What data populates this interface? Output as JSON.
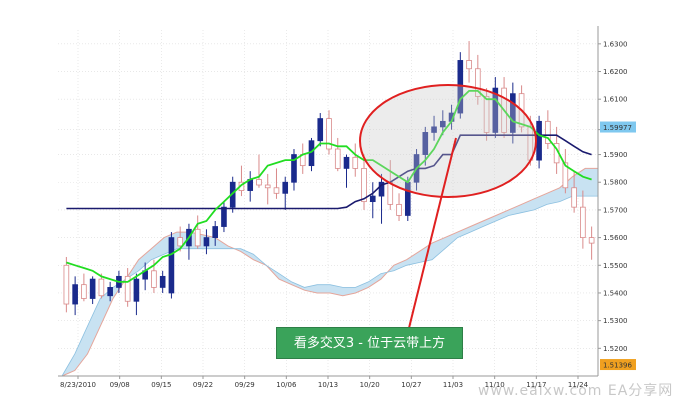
{
  "chart_data": {
    "type": "candlestick",
    "y_ticks": [
      "1.6300",
      "1.6200",
      "1.6100",
      "1.5990",
      "1.5900",
      "1.5800",
      "1.5700",
      "1.5600",
      "1.5500",
      "1.5400",
      "1.5300",
      "1.5200"
    ],
    "x_ticks": [
      "8/23/2010",
      "09/08",
      "09/15",
      "09/22",
      "09/29",
      "10/06",
      "10/13",
      "10/20",
      "10/27",
      "11/03",
      "11/10",
      "11/17",
      "11/24"
    ],
    "price_badges": [
      {
        "label": "1.59977",
        "value": 1.59977,
        "color": "#7fc8ef"
      },
      {
        "label": "1.51396",
        "value": 1.51396,
        "color": "#f0a020"
      }
    ],
    "ylim": [
      1.51,
      1.635
    ],
    "candles": [
      [
        1.55,
        1.553,
        1.533,
        1.536
      ],
      [
        1.536,
        1.546,
        1.532,
        1.543
      ],
      [
        1.543,
        1.547,
        1.537,
        1.538
      ],
      [
        1.538,
        1.546,
        1.536,
        1.545
      ],
      [
        1.545,
        1.547,
        1.538,
        1.539
      ],
      [
        1.539,
        1.544,
        1.537,
        1.542
      ],
      [
        1.542,
        1.548,
        1.54,
        1.546
      ],
      [
        1.546,
        1.549,
        1.535,
        1.537
      ],
      [
        1.537,
        1.547,
        1.532,
        1.545
      ],
      [
        1.545,
        1.551,
        1.541,
        1.548
      ],
      [
        1.548,
        1.552,
        1.54,
        1.542
      ],
      [
        1.542,
        1.548,
        1.54,
        1.546
      ],
      [
        1.54,
        1.562,
        1.538,
        1.56
      ],
      [
        1.56,
        1.564,
        1.555,
        1.557
      ],
      [
        1.557,
        1.565,
        1.552,
        1.563
      ],
      [
        1.563,
        1.568,
        1.556,
        1.557
      ],
      [
        1.557,
        1.563,
        1.554,
        1.56
      ],
      [
        1.56,
        1.566,
        1.557,
        1.564
      ],
      [
        1.564,
        1.573,
        1.562,
        1.571
      ],
      [
        1.571,
        1.582,
        1.569,
        1.58
      ],
      [
        1.58,
        1.586,
        1.575,
        1.577
      ],
      [
        1.577,
        1.584,
        1.573,
        1.581
      ],
      [
        1.581,
        1.59,
        1.578,
        1.579
      ],
      [
        1.579,
        1.583,
        1.572,
        1.578
      ],
      [
        1.578,
        1.585,
        1.574,
        1.576
      ],
      [
        1.576,
        1.582,
        1.57,
        1.58
      ],
      [
        1.58,
        1.592,
        1.577,
        1.59
      ],
      [
        1.59,
        1.594,
        1.583,
        1.586
      ],
      [
        1.586,
        1.596,
        1.584,
        1.595
      ],
      [
        1.595,
        1.605,
        1.593,
        1.603
      ],
      [
        1.603,
        1.606,
        1.59,
        1.592
      ],
      [
        1.592,
        1.596,
        1.584,
        1.585
      ],
      [
        1.585,
        1.59,
        1.578,
        1.589
      ],
      [
        1.589,
        1.594,
        1.582,
        1.585
      ],
      [
        1.585,
        1.59,
        1.57,
        1.573
      ],
      [
        1.573,
        1.58,
        1.567,
        1.575
      ],
      [
        1.575,
        1.583,
        1.565,
        1.58
      ],
      [
        1.58,
        1.588,
        1.57,
        1.572
      ],
      [
        1.572,
        1.576,
        1.566,
        1.568
      ],
      [
        1.568,
        1.582,
        1.566,
        1.58
      ],
      [
        1.58,
        1.592,
        1.577,
        1.59
      ],
      [
        1.59,
        1.6,
        1.586,
        1.598
      ],
      [
        1.598,
        1.604,
        1.595,
        1.6
      ],
      [
        1.6,
        1.606,
        1.597,
        1.602
      ],
      [
        1.602,
        1.608,
        1.599,
        1.605
      ],
      [
        1.605,
        1.627,
        1.603,
        1.624
      ],
      [
        1.624,
        1.631,
        1.616,
        1.621
      ],
      [
        1.621,
        1.626,
        1.608,
        1.611
      ],
      [
        1.611,
        1.614,
        1.595,
        1.598
      ],
      [
        1.598,
        1.618,
        1.596,
        1.614
      ],
      [
        1.614,
        1.618,
        1.596,
        1.598
      ],
      [
        1.598,
        1.616,
        1.594,
        1.612
      ],
      [
        1.612,
        1.615,
        1.598,
        1.6
      ],
      [
        1.6,
        1.604,
        1.586,
        1.588
      ],
      [
        1.588,
        1.604,
        1.585,
        1.602
      ],
      [
        1.602,
        1.606,
        1.592,
        1.594
      ],
      [
        1.594,
        1.6,
        1.583,
        1.587
      ],
      [
        1.587,
        1.592,
        1.576,
        1.578
      ],
      [
        1.578,
        1.584,
        1.569,
        1.571
      ],
      [
        1.571,
        1.577,
        1.556,
        1.56
      ],
      [
        1.56,
        1.564,
        1.552,
        1.558
      ]
    ],
    "kijun": [
      1.5705,
      1.5705,
      1.5705,
      1.5705,
      1.5705,
      1.5705,
      1.5705,
      1.5705,
      1.5705,
      1.5705,
      1.5705,
      1.5705,
      1.5705,
      1.5705,
      1.5705,
      1.5705,
      1.5705,
      1.5705,
      1.5705,
      1.5705,
      1.5705,
      1.5705,
      1.5705,
      1.5705,
      1.5705,
      1.5705,
      1.5705,
      1.5705,
      1.5705,
      1.5705,
      1.5705,
      1.5705,
      1.571,
      1.573,
      1.574,
      1.576,
      1.579,
      1.58,
      1.582,
      1.584,
      1.585,
      1.585,
      1.586,
      1.59,
      1.59,
      1.597,
      1.597,
      1.597,
      1.597,
      1.597,
      1.597,
      1.597,
      1.597,
      1.597,
      1.597,
      1.597,
      1.597,
      1.595,
      1.593,
      1.591,
      1.59
    ],
    "tenkan": [
      1.551,
      1.55,
      1.549,
      1.548,
      1.546,
      1.545,
      1.544,
      1.544,
      1.546,
      1.548,
      1.55,
      1.553,
      1.554,
      1.556,
      1.56,
      1.565,
      1.566,
      1.57,
      1.573,
      1.576,
      1.579,
      1.581,
      1.582,
      1.586,
      1.587,
      1.588,
      1.588,
      1.59,
      1.591,
      1.594,
      1.594,
      1.593,
      1.593,
      1.59,
      1.588,
      1.588,
      1.586,
      1.584,
      1.582,
      1.58,
      1.585,
      1.588,
      1.592,
      1.598,
      1.602,
      1.61,
      1.613,
      1.613,
      1.61,
      1.61,
      1.606,
      1.602,
      1.601,
      1.6,
      1.597,
      1.596,
      1.592,
      1.586,
      1.584,
      1.582,
      1.581
    ],
    "cloud_upper": [
      1.51,
      1.512,
      1.518,
      1.528,
      1.538,
      1.545,
      1.552,
      1.556,
      1.56,
      1.562,
      1.562,
      1.561,
      1.56,
      1.557,
      1.555,
      1.552,
      1.55,
      1.545,
      1.543,
      1.541,
      1.54,
      1.54,
      1.539,
      1.54,
      1.542,
      1.545,
      1.55,
      1.552,
      1.555,
      1.558,
      1.56,
      1.562,
      1.564,
      1.566,
      1.568,
      1.57,
      1.572,
      1.574,
      1.576,
      1.578,
      1.582,
      1.585,
      1.585
    ],
    "cloud_lower": [
      1.51,
      1.518,
      1.528,
      1.538,
      1.542,
      1.545,
      1.548,
      1.552,
      1.554,
      1.556,
      1.556,
      1.556,
      1.556,
      1.556,
      1.556,
      1.554,
      1.55,
      1.547,
      1.544,
      1.542,
      1.543,
      1.543,
      1.542,
      1.542,
      1.544,
      1.547,
      1.548,
      1.55,
      1.551,
      1.552,
      1.556,
      1.56,
      1.562,
      1.564,
      1.566,
      1.568,
      1.569,
      1.57,
      1.572,
      1.573,
      1.575,
      1.575,
      1.575
    ],
    "cloud_start_index": 18,
    "annotation_text": "看多交叉3 - 位于云带上方",
    "watermark_text": "www.eaixw.com   EA分享网"
  }
}
